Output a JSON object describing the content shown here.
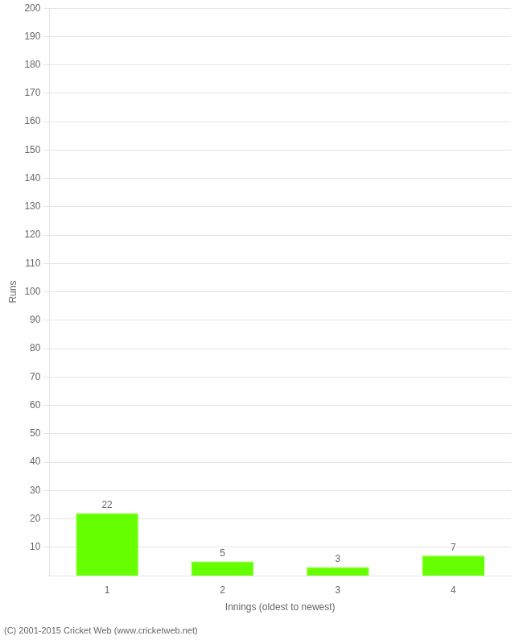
{
  "chart_data": {
    "type": "bar",
    "categories": [
      "1",
      "2",
      "3",
      "4"
    ],
    "values": [
      22,
      5,
      3,
      7
    ],
    "color": "#66ff00",
    "xlabel": "Innings (oldest to newest)",
    "ylabel": "Runs",
    "ylim": [
      0,
      200
    ],
    "yticks": [
      10,
      20,
      30,
      40,
      50,
      60,
      70,
      80,
      90,
      100,
      110,
      120,
      130,
      140,
      150,
      160,
      170,
      180,
      190,
      200
    ],
    "grid": true,
    "data_labels": true,
    "annotations": [
      "(C) 2001-2015 Cricket Web (www.cricketweb.net)"
    ]
  }
}
